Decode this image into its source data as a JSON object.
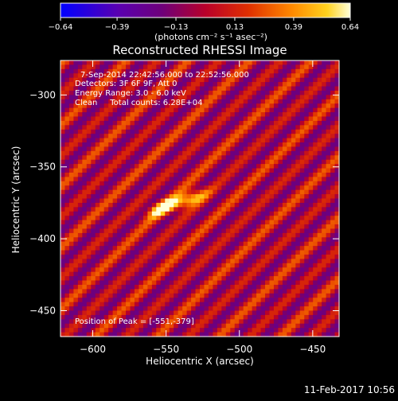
{
  "chart_data": {
    "type": "heatmap",
    "title": "Reconstructed RHESSI Image",
    "xlabel": "Heliocentric X (arcsec)",
    "ylabel": "Heliocentric Y (arcsec)",
    "xlim": [
      -622,
      -432
    ],
    "ylim": [
      -468,
      -276
    ],
    "x_ticks": [
      -600,
      -550,
      -500,
      -450
    ],
    "y_ticks": [
      -300,
      -350,
      -400,
      -450
    ],
    "x_tick_labels": [
      "−600",
      "−550",
      "−500",
      "−450"
    ],
    "y_tick_labels": [
      "−300",
      "−350",
      "−400",
      "−450"
    ],
    "colorbar": {
      "min": -0.64,
      "max": 0.64,
      "tick_labels": [
        "−0.64",
        "−0.39",
        "−0.13",
        "0.13",
        "0.39",
        "0.64"
      ],
      "units_label": "(photons cm⁻² s⁻¹ asec⁻²)",
      "colormap": "blue-purple-red-orange-yellow-white"
    },
    "annotations": [
      "7-Sep-2014 22:42:56.000 to 22:52:56.000",
      "Detectors: 3F 6F 9F, Att 0",
      "Energy Range: 3.0 - 6.0 keV",
      "Clean     Total counts: 6.28E+04"
    ],
    "peak_label": "Position of Peak = [-551,-379]",
    "peak": {
      "x": -551,
      "y": -379
    },
    "sources": [
      {
        "x": -551,
        "y": -378,
        "amplitude": 0.64
      },
      {
        "x": -532,
        "y": -372,
        "amplitude": 0.55
      }
    ],
    "background_pattern": "diagonal fringe stripes"
  },
  "footer": {
    "date_stamp": "11-Feb-2017 10:56"
  }
}
